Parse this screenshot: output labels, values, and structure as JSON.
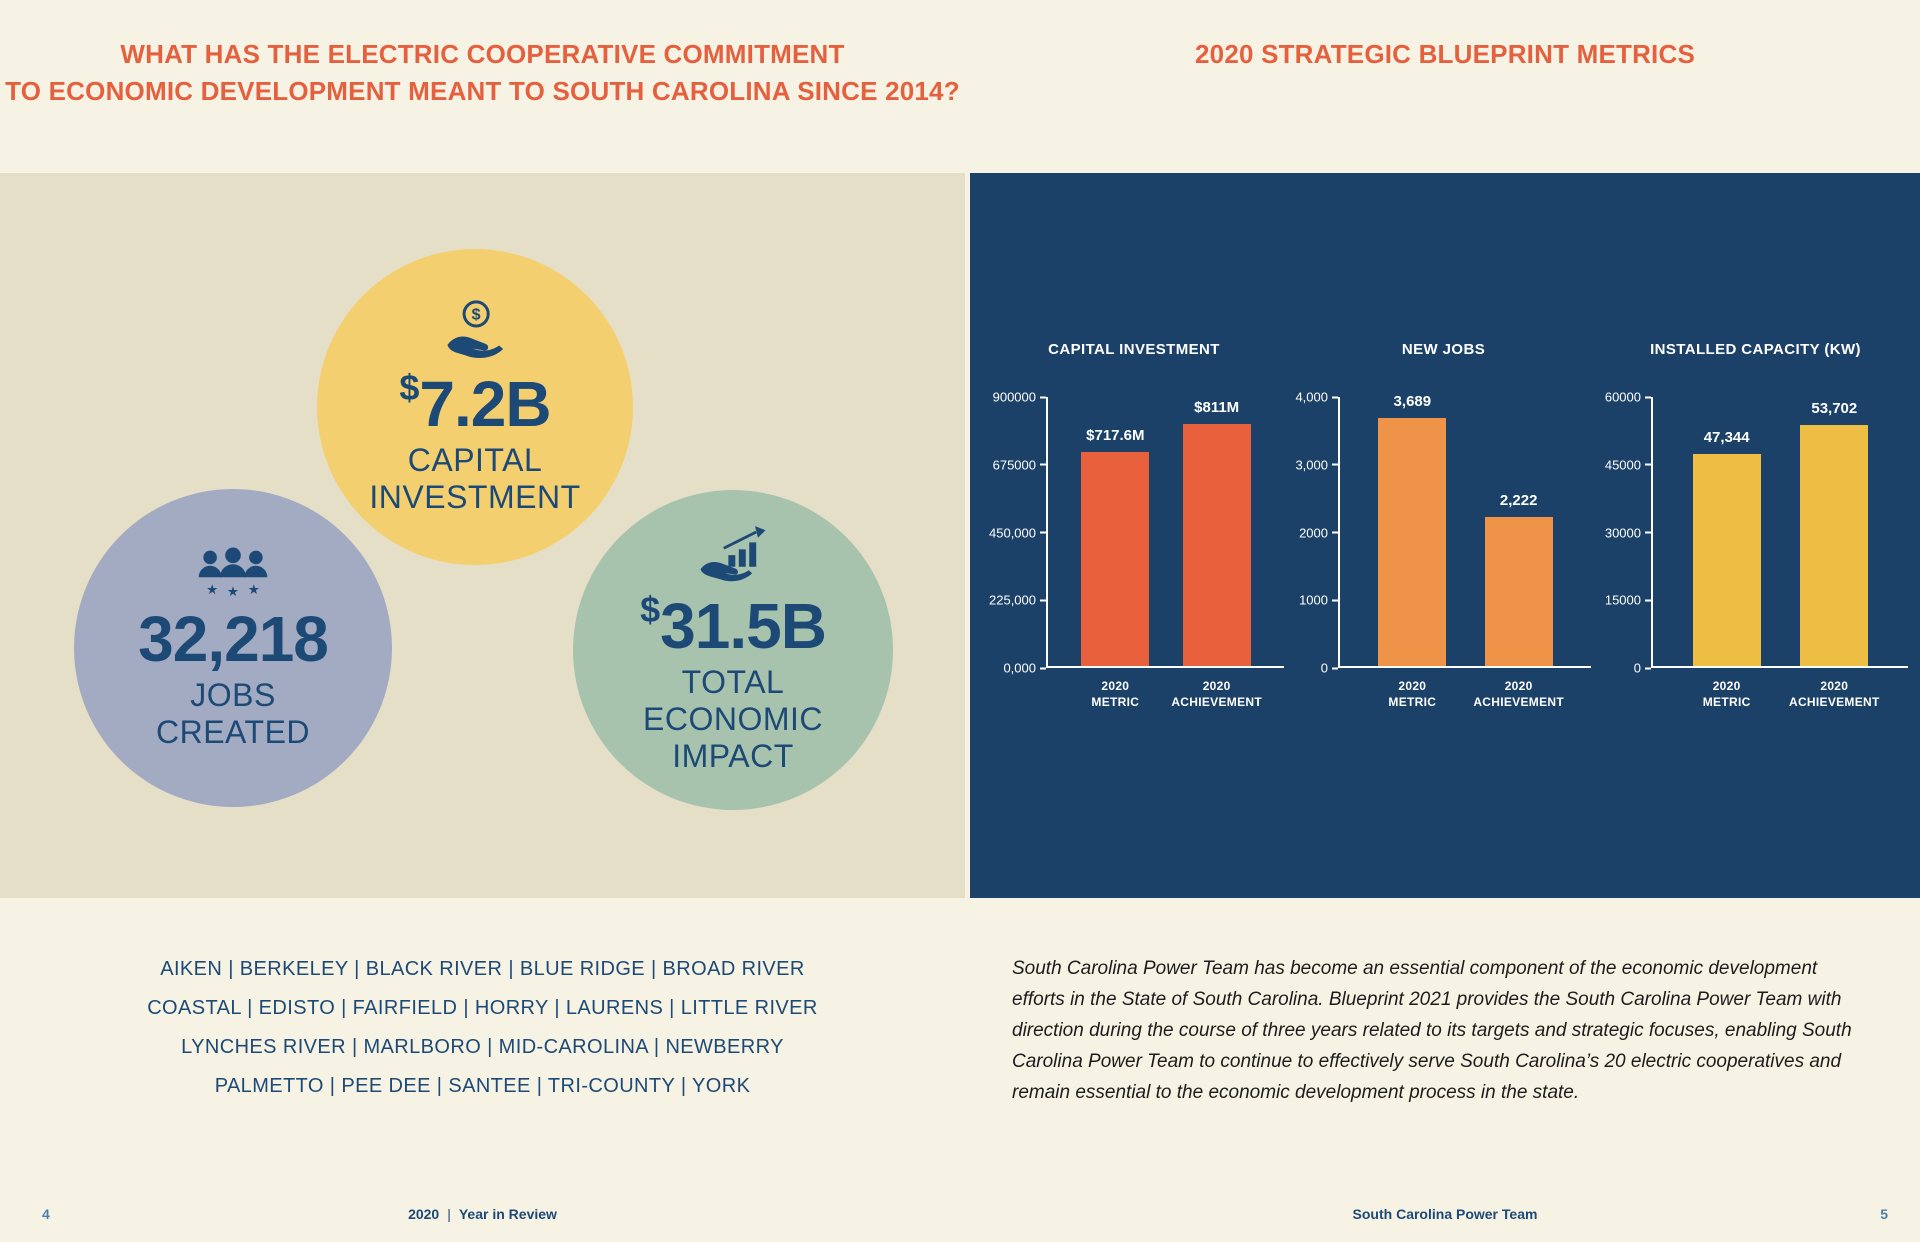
{
  "header_left": {
    "line1": "WHAT HAS THE ELECTRIC COOPERATIVE COMMITMENT",
    "line2": "TO ECONOMIC DEVELOPMENT MEANT TO SOUTH CAROLINA SINCE 2014?"
  },
  "header_right": {
    "title": "2020 STRATEGIC BLUEPRINT METRICS"
  },
  "stats": {
    "capital": {
      "prefix": "$",
      "value": "7.2B",
      "label1": "CAPITAL",
      "label2": "INVESTMENT",
      "circle_color": "#f3cf70"
    },
    "jobs": {
      "prefix": "",
      "value": "32,218",
      "label1": "JOBS",
      "label2": "CREATED",
      "circle_color": "#a2abc2"
    },
    "impact": {
      "prefix": "$",
      "value": "31.5B",
      "label1": "TOTAL",
      "label2": "ECONOMIC",
      "label3": "IMPACT",
      "circle_color": "#a7c3ad"
    }
  },
  "counties": {
    "line1": "AIKEN | BERKELEY | BLACK RIVER | BLUE RIDGE | BROAD RIVER",
    "line2": "COASTAL | EDISTO | FAIRFIELD | HORRY | LAURENS | LITTLE RIVER",
    "line3": "LYNCHES RIVER | MARLBORO | MID-CAROLINA | NEWBERRY",
    "line4": "PALMETTO | PEE DEE | SANTEE | TRI-COUNTY | YORK"
  },
  "paragraph": {
    "text": "South Carolina Power Team has become an essential component of the economic development efforts in the State of South Carolina. Blueprint 2021 provides the South Carolina Power Team with direction during the course of three years related to its targets and strategic focuses, enabling South Carolina Power Team to continue to effectively serve South Carolina’s 20 electric cooperatives and remain essential to the economic development process in the state."
  },
  "footer": {
    "left_page": "4",
    "left_bold": "2020",
    "separator": "|",
    "left_rest": "Year in Review",
    "right_text": "South Carolina Power Team",
    "right_page": "5"
  },
  "colors": {
    "accent_orange": "#e5603e",
    "navy_panel": "#1b4168",
    "beige_panel": "#e6dfc8",
    "cream_background": "#f7f3e4",
    "dark_blue_text": "#1d4976"
  },
  "chart_data": [
    {
      "type": "bar",
      "title": "CAPITAL INVESTMENT",
      "categories": [
        "2020\nMETRIC",
        "2020\nACHIEVEMENT"
      ],
      "values": [
        717600,
        811000
      ],
      "value_labels": [
        "$717.6M",
        "$811M"
      ],
      "ylim": [
        0,
        900000
      ],
      "yticks": [
        "900000",
        "675000",
        "450,000",
        "225,000",
        "0,000"
      ],
      "bar_color": "#e8603c",
      "legend": "none",
      "grid": "off"
    },
    {
      "type": "bar",
      "title": "NEW JOBS",
      "categories": [
        "2020\nMETRIC",
        "2020\nACHIEVEMENT"
      ],
      "values": [
        3689,
        2222
      ],
      "value_labels": [
        "3,689",
        "2,222"
      ],
      "ylim": [
        0,
        4000
      ],
      "yticks": [
        "4,000",
        "3,000",
        "2000",
        "1000",
        "0"
      ],
      "bar_color": "#ef9349",
      "legend": "none",
      "grid": "off"
    },
    {
      "type": "bar",
      "title": "INSTALLED CAPACITY (KW)",
      "categories": [
        "2020\nMETRIC",
        "2020\nACHIEVEMENT"
      ],
      "values": [
        47344,
        53702
      ],
      "value_labels": [
        "47,344",
        "53,702"
      ],
      "ylim": [
        0,
        60000
      ],
      "yticks": [
        "60000",
        "45000",
        "30000",
        "15000",
        "0"
      ],
      "bar_color": "#edbd44",
      "legend": "none",
      "grid": "off"
    }
  ]
}
